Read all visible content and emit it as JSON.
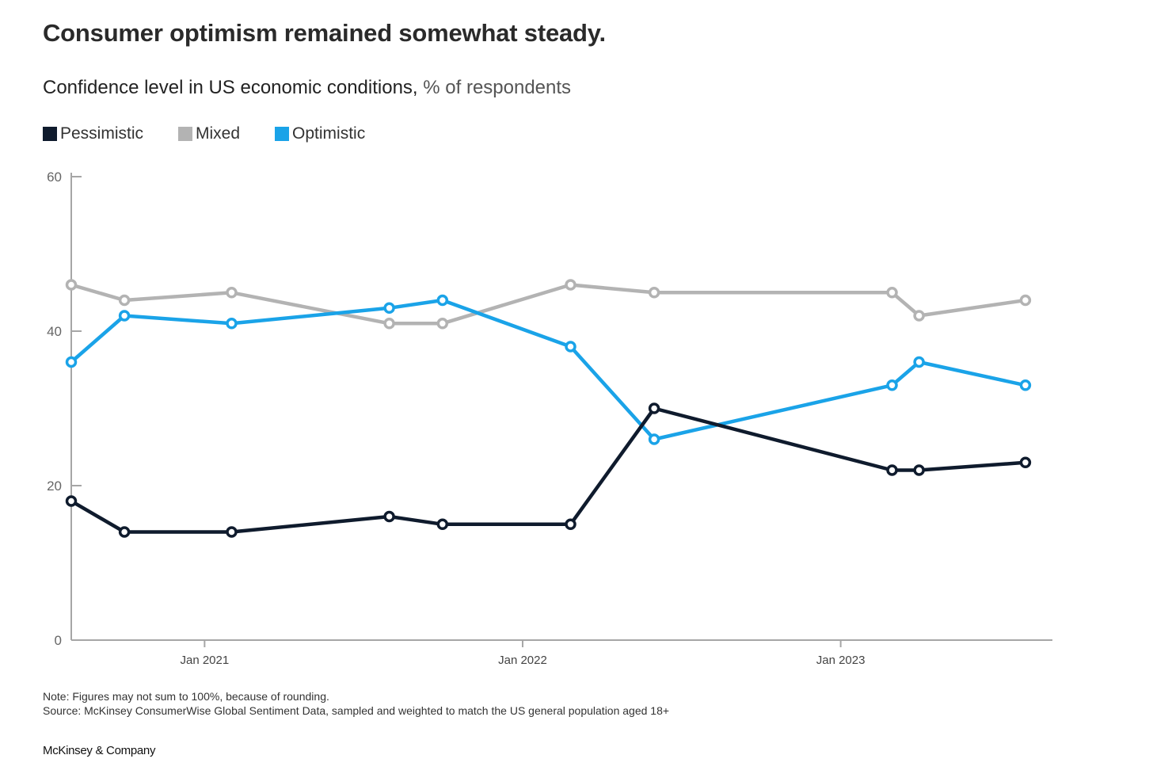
{
  "header": {
    "title": "Consumer optimism remained somewhat steady.",
    "subtitle_main": "Confidence level in US economic conditions,",
    "subtitle_unit": " % of respondents"
  },
  "legend": [
    {
      "label": "Pessimistic",
      "color": "#0f1b2d"
    },
    {
      "label": "Mixed",
      "color": "#b3b3b3"
    },
    {
      "label": "Optimistic",
      "color": "#1aa3e8"
    }
  ],
  "footer": {
    "note": "Note: Figures may not sum to 100%, because of rounding.",
    "source": "Source: McKinsey ConsumerWise Global Sentiment Data, sampled and weighted to match the US general population aged 18+",
    "brand": "McKinsey & Company"
  },
  "chart_data": {
    "type": "line",
    "title": "Confidence level in US economic conditions",
    "ylabel": "% of respondents",
    "ylim": [
      0,
      60
    ],
    "yticks": [
      0,
      20,
      40,
      60
    ],
    "xlim": [
      "2020-08-01",
      "2023-09-01"
    ],
    "xticks": [
      {
        "date": "2021-01-01",
        "label": "Jan 2021"
      },
      {
        "date": "2022-01-01",
        "label": "Jan 2022"
      },
      {
        "date": "2023-01-01",
        "label": "Jan 2023"
      }
    ],
    "x": [
      "2020-08-01",
      "2020-10-01",
      "2021-02-01",
      "2021-08-01",
      "2021-10-01",
      "2022-02-25",
      "2022-06-01",
      "2023-03-01",
      "2023-04-01",
      "2023-08-01"
    ],
    "series": [
      {
        "name": "Pessimistic",
        "color": "#0f1b2d",
        "values": [
          18,
          14,
          14,
          16,
          15,
          15,
          30,
          22,
          22,
          23
        ]
      },
      {
        "name": "Mixed",
        "color": "#b3b3b3",
        "values": [
          46,
          44,
          45,
          41,
          41,
          46,
          45,
          45,
          42,
          44
        ]
      },
      {
        "name": "Optimistic",
        "color": "#1aa3e8",
        "values": [
          36,
          42,
          41,
          43,
          44,
          38,
          26,
          33,
          36,
          33
        ]
      }
    ],
    "grid": false,
    "legend_position": "top-left"
  }
}
